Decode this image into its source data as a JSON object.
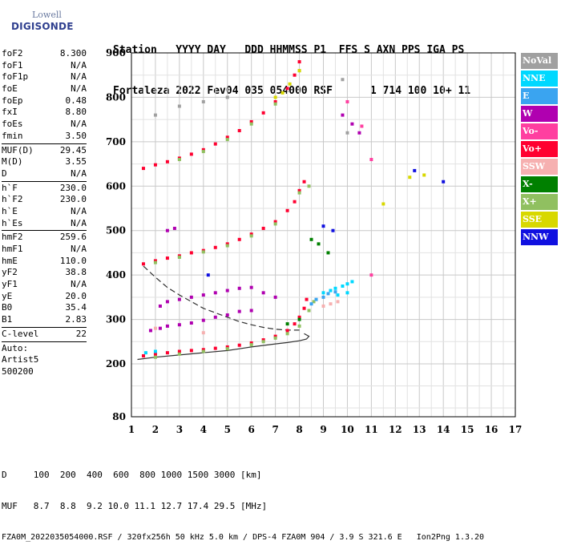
{
  "logo": {
    "line1": "Lowell",
    "line2": "DIGISONDE"
  },
  "header": {
    "line1": "Station   YYYY DAY   DDD HHMMSS P1  FFS S AXN PPS IGA PS",
    "line2": "Fortaleza 2022 Fev04 035 054000 RSF      1 714 100 10+ 11"
  },
  "params": {
    "group1": [
      {
        "k": "foF2",
        "v": "8.300"
      },
      {
        "k": "foF1",
        "v": "N/A"
      },
      {
        "k": "foF1p",
        "v": "N/A"
      },
      {
        "k": "foE",
        "v": "N/A"
      },
      {
        "k": "foEp",
        "v": "0.48"
      },
      {
        "k": "fxI",
        "v": "8.80"
      },
      {
        "k": "foEs",
        "v": "N/A"
      },
      {
        "k": "fmin",
        "v": "3.50"
      }
    ],
    "group2": [
      {
        "k": "MUF(D)",
        "v": "29.45"
      },
      {
        "k": "M(D)",
        "v": "3.55"
      },
      {
        "k": "D",
        "v": "N/A"
      }
    ],
    "group3": [
      {
        "k": "h`F",
        "v": "230.0"
      },
      {
        "k": "h`F2",
        "v": "230.0"
      },
      {
        "k": "h`E",
        "v": "N/A"
      },
      {
        "k": "h`Es",
        "v": "N/A"
      }
    ],
    "group4": [
      {
        "k": "hmF2",
        "v": "259.6"
      },
      {
        "k": "hmF1",
        "v": "N/A"
      },
      {
        "k": "hmE",
        "v": "110.0"
      },
      {
        "k": "yF2",
        "v": "38.8"
      },
      {
        "k": "yF1",
        "v": "N/A"
      },
      {
        "k": "yE",
        "v": "20.0"
      },
      {
        "k": "B0",
        "v": "35.4"
      },
      {
        "k": "B1",
        "v": "2.83"
      }
    ],
    "group5": [
      {
        "k": "C-level",
        "v": "22"
      }
    ],
    "auto": [
      "Auto:",
      "Artist5",
      "500200"
    ]
  },
  "legend": [
    {
      "label": "NoVal",
      "color": "#a0a0a0",
      "text_color": "#ffffff"
    },
    {
      "label": "NNE",
      "color": "#00d8ff",
      "text_color": "#ffffff"
    },
    {
      "label": "E",
      "color": "#3aa4f0",
      "text_color": "#ffffff"
    },
    {
      "label": "W",
      "color": "#b000b0",
      "text_color": "#ffffff"
    },
    {
      "label": "Vo-",
      "color": "#ff3fa0",
      "text_color": "#ffffff"
    },
    {
      "label": "Vo+",
      "color": "#ff0030",
      "text_color": "#ffffff"
    },
    {
      "label": "SSW",
      "color": "#f6b0b0",
      "text_color": "#ffffff"
    },
    {
      "label": "X-",
      "color": "#008000",
      "text_color": "#ffffff"
    },
    {
      "label": "X+",
      "color": "#90c060",
      "text_color": "#ffffff"
    },
    {
      "label": "SSE",
      "color": "#d8d800",
      "text_color": "#ffffff"
    },
    {
      "label": "NNW",
      "color": "#1010e0",
      "text_color": "#ffffff"
    }
  ],
  "footer": {
    "line1": "D     100  200  400  600  800 1000 1500 3000 [km]",
    "line2": "MUF   8.7  8.8  9.2 10.0 11.1 12.7 17.4 29.5 [MHz]",
    "line3": "FZA0M_2022035054000.RSF / 320fx256h 50 kHz 5.0 km / DPS-4 FZA0M 904 / 3.9 S 321.6 E   Ion2Png 1.3.20"
  },
  "chart_data": {
    "type": "scatter",
    "xlabel": "",
    "ylabel": "",
    "xlim": [
      1,
      17
    ],
    "ylim": [
      80,
      900
    ],
    "xticks": [
      "1",
      "2",
      "3",
      "4",
      "5",
      "6",
      "7",
      "8",
      "9",
      "10",
      "11",
      "12",
      "13",
      "14",
      "15",
      "16",
      "17"
    ],
    "yticks": [
      "80",
      "200",
      "300",
      "400",
      "500",
      "600",
      "700",
      "800",
      "900"
    ],
    "grid": true,
    "series": [
      {
        "name": "Vo+",
        "color": "#ff0030",
        "points": [
          [
            1.5,
            218
          ],
          [
            2,
            222
          ],
          [
            2.5,
            225
          ],
          [
            3,
            228
          ],
          [
            3.5,
            230
          ],
          [
            4,
            232
          ],
          [
            4.5,
            235
          ],
          [
            5,
            238
          ],
          [
            5.5,
            242
          ],
          [
            6,
            247
          ],
          [
            6.5,
            254
          ],
          [
            7,
            262
          ],
          [
            7.5,
            275
          ],
          [
            7.8,
            290
          ],
          [
            8,
            305
          ],
          [
            8.2,
            325
          ],
          [
            8.3,
            345
          ],
          [
            1.5,
            425
          ],
          [
            2,
            432
          ],
          [
            2.5,
            438
          ],
          [
            3,
            443
          ],
          [
            3.5,
            450
          ],
          [
            4,
            455
          ],
          [
            4.5,
            462
          ],
          [
            5,
            470
          ],
          [
            5.5,
            480
          ],
          [
            6,
            492
          ],
          [
            6.5,
            505
          ],
          [
            7,
            520
          ],
          [
            7.5,
            545
          ],
          [
            7.8,
            565
          ],
          [
            8,
            590
          ],
          [
            8.2,
            610
          ],
          [
            1.5,
            640
          ],
          [
            2,
            648
          ],
          [
            2.5,
            655
          ],
          [
            3,
            663
          ],
          [
            3.5,
            672
          ],
          [
            4,
            682
          ],
          [
            4.5,
            695
          ],
          [
            5,
            710
          ],
          [
            5.5,
            725
          ],
          [
            6,
            745
          ],
          [
            6.5,
            765
          ],
          [
            7,
            790
          ],
          [
            7.5,
            820
          ],
          [
            7.8,
            850
          ],
          [
            8,
            880
          ]
        ]
      },
      {
        "name": "X+",
        "color": "#90c060",
        "points": [
          [
            2,
            215
          ],
          [
            3,
            222
          ],
          [
            4,
            228
          ],
          [
            5,
            234
          ],
          [
            6,
            243
          ],
          [
            6.5,
            250
          ],
          [
            7,
            258
          ],
          [
            7.5,
            268
          ],
          [
            8,
            285
          ],
          [
            8.4,
            320
          ],
          [
            8.6,
            340
          ],
          [
            2,
            428
          ],
          [
            3,
            440
          ],
          [
            4,
            452
          ],
          [
            5,
            466
          ],
          [
            6,
            488
          ],
          [
            7,
            515
          ],
          [
            8,
            585
          ],
          [
            8.4,
            600
          ],
          [
            3,
            660
          ],
          [
            4,
            678
          ],
          [
            5,
            705
          ],
          [
            6,
            740
          ],
          [
            7,
            785
          ],
          [
            8,
            860
          ]
        ]
      },
      {
        "name": "W",
        "color": "#b000b0",
        "points": [
          [
            1.8,
            275
          ],
          [
            2.2,
            280
          ],
          [
            2.5,
            285
          ],
          [
            3,
            288
          ],
          [
            3.5,
            292
          ],
          [
            4,
            298
          ],
          [
            4.5,
            305
          ],
          [
            5,
            310
          ],
          [
            5.5,
            318
          ],
          [
            6,
            320
          ],
          [
            2.2,
            330
          ],
          [
            2.5,
            340
          ],
          [
            3,
            345
          ],
          [
            3.5,
            350
          ],
          [
            4,
            355
          ],
          [
            4.5,
            360
          ],
          [
            5,
            365
          ],
          [
            5.5,
            370
          ],
          [
            6,
            372
          ],
          [
            6.5,
            360
          ],
          [
            7,
            350
          ],
          [
            2.5,
            500
          ],
          [
            2.8,
            505
          ],
          [
            9.8,
            760
          ],
          [
            10.5,
            720
          ],
          [
            10.2,
            740
          ]
        ]
      },
      {
        "name": "NNE",
        "color": "#00d8ff",
        "points": [
          [
            1.6,
            225
          ],
          [
            2,
            228
          ],
          [
            9,
            360
          ],
          [
            9.3,
            365
          ],
          [
            9.5,
            370
          ],
          [
            9.8,
            375
          ],
          [
            10,
            380
          ],
          [
            10.2,
            385
          ],
          [
            9.6,
            355
          ],
          [
            10,
            360
          ]
        ]
      },
      {
        "name": "E",
        "color": "#3aa4f0",
        "points": [
          [
            8.5,
            335
          ],
          [
            8.7,
            345
          ],
          [
            9,
            350
          ],
          [
            9.2,
            358
          ],
          [
            9.5,
            362
          ]
        ]
      },
      {
        "name": "SSW",
        "color": "#f6b0b0",
        "points": [
          [
            9,
            330
          ],
          [
            9.3,
            335
          ],
          [
            9.6,
            340
          ],
          [
            2,
            280
          ],
          [
            4,
            270
          ]
        ]
      },
      {
        "name": "X-",
        "color": "#008000",
        "points": [
          [
            8.5,
            480
          ],
          [
            8.8,
            470
          ],
          [
            9.2,
            450
          ],
          [
            8,
            300
          ],
          [
            7.5,
            290
          ]
        ]
      },
      {
        "name": "SSE",
        "color": "#d8d800",
        "points": [
          [
            7,
            800
          ],
          [
            7.3,
            810
          ],
          [
            7.6,
            830
          ],
          [
            8,
            860
          ],
          [
            11.5,
            560
          ],
          [
            12.6,
            620
          ],
          [
            13.2,
            625
          ]
        ]
      },
      {
        "name": "NNW",
        "color": "#1010e0",
        "points": [
          [
            9,
            510
          ],
          [
            9.4,
            500
          ],
          [
            4.2,
            400
          ],
          [
            12.8,
            635
          ],
          [
            14,
            610
          ]
        ]
      },
      {
        "name": "Vo-",
        "color": "#ff3fa0",
        "points": [
          [
            10,
            790
          ],
          [
            10.6,
            735
          ],
          [
            11,
            660
          ],
          [
            11,
            400
          ]
        ]
      },
      {
        "name": "NoVal",
        "color": "#a0a0a0",
        "points": [
          [
            2,
            760
          ],
          [
            3,
            780
          ],
          [
            4,
            790
          ],
          [
            5,
            800
          ],
          [
            9.8,
            840
          ],
          [
            10,
            720
          ]
        ]
      }
    ],
    "profile_solid": [
      [
        1.25,
        210
      ],
      [
        2,
        215
      ],
      [
        3,
        220
      ],
      [
        4,
        225
      ],
      [
        5,
        230
      ],
      [
        5.5,
        234
      ],
      [
        6,
        238
      ],
      [
        7,
        245
      ],
      [
        7.5,
        248
      ],
      [
        8,
        252
      ],
      [
        8.3,
        256
      ],
      [
        8.4,
        262
      ],
      [
        8.2,
        268
      ]
    ],
    "profile_dashed": [
      [
        1.5,
        420
      ],
      [
        2,
        395
      ],
      [
        2.5,
        372
      ],
      [
        3,
        355
      ],
      [
        4,
        325
      ],
      [
        4.5,
        315
      ],
      [
        5,
        305
      ],
      [
        5.5,
        295
      ],
      [
        6,
        288
      ],
      [
        6.5,
        282
      ],
      [
        7,
        278
      ],
      [
        7.5,
        276
      ],
      [
        8,
        276
      ]
    ]
  }
}
